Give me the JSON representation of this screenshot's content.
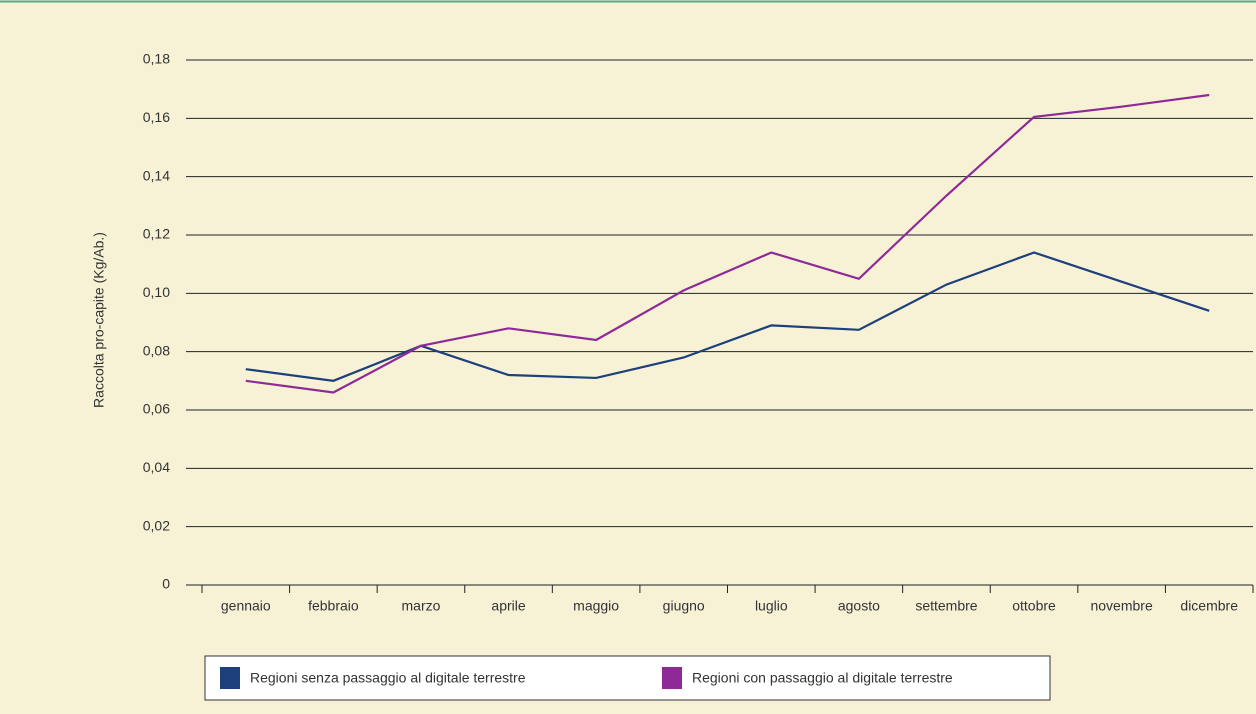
{
  "chart_data": {
    "type": "line",
    "y_label": "Raccolta  pro-capite (Kg/Ab.)",
    "categories": [
      "gennaio",
      "febbraio",
      "marzo",
      "aprile",
      "maggio",
      "giugno",
      "luglio",
      "agosto",
      "settembre",
      "ottobre",
      "novembre",
      "dicembre"
    ],
    "series": [
      {
        "name": "Regioni senza passaggio al digitale terrestre",
        "color": "#1d3f7c",
        "values": [
          0.074,
          0.07,
          0.082,
          0.072,
          0.071,
          0.078,
          0.089,
          0.0875,
          0.103,
          0.114,
          0.104,
          0.094
        ]
      },
      {
        "name": "Regioni con passaggio al digitale terrestre",
        "color": "#8e2a98",
        "values": [
          0.07,
          0.066,
          0.082,
          0.088,
          0.084,
          0.101,
          0.114,
          0.105,
          0.1335,
          0.1605,
          0.164,
          0.168
        ]
      }
    ],
    "ylim": [
      0,
      0.18
    ],
    "yticks": [
      0,
      {
        "value": 0.02,
        "label": "0,02"
      },
      {
        "value": 0.04,
        "label": "0,04"
      },
      {
        "value": 0.06,
        "label": "0,06"
      },
      {
        "value": 0.08,
        "label": "0,08"
      },
      {
        "value": 0.1,
        "label": "0,10"
      },
      {
        "value": 0.12,
        "label": "0,12"
      },
      {
        "value": 0.14,
        "label": "0,14"
      },
      {
        "value": 0.16,
        "label": "0,16"
      },
      {
        "value": 0.18,
        "label": "0,18"
      }
    ],
    "grid": true
  }
}
